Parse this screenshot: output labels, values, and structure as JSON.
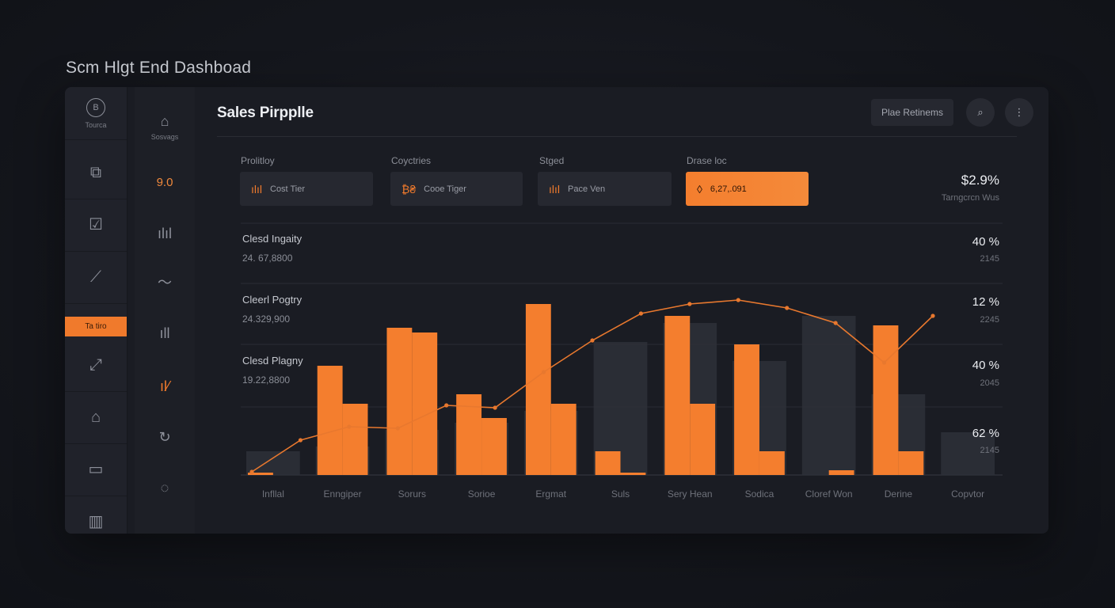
{
  "page_title": "Scm Hlgt End Dashboad",
  "rail": {
    "items": [
      {
        "icon": "B",
        "label": "Tourca",
        "name": "b-icon"
      },
      {
        "icon": "⧉",
        "label": "",
        "name": "clipboard-icon"
      },
      {
        "icon": "☑",
        "label": "",
        "name": "checklist-icon"
      },
      {
        "icon": "⟋",
        "label": "",
        "name": "link-icon"
      },
      {
        "icon": "⤢",
        "label": "",
        "name": "share-icon"
      },
      {
        "icon": "⌂",
        "label": "",
        "name": "home-icon"
      },
      {
        "icon": "▭",
        "label": "",
        "name": "wallet-icon"
      },
      {
        "icon": "▥",
        "label": "",
        "name": "calendar-icon"
      }
    ],
    "active_tab_label": "Ta  tiro"
  },
  "side2": {
    "items": [
      {
        "icon": "⌂",
        "label": "Sosvags",
        "name": "lock-icon"
      },
      {
        "icon": "",
        "label": "9.0",
        "name": "value-9"
      },
      {
        "icon": "ılıl",
        "label": "",
        "name": "bars-icon"
      },
      {
        "icon": "〜",
        "label": "",
        "name": "trend-icon"
      },
      {
        "icon": "ıll",
        "label": "",
        "name": "bar-chart-icon"
      },
      {
        "icon": "ıl⁄",
        "label": "",
        "name": "growth-icon"
      },
      {
        "icon": "↻",
        "label": "",
        "name": "refresh-icon"
      },
      {
        "icon": "◌",
        "label": "",
        "name": "loop-icon"
      }
    ]
  },
  "card": {
    "title": "Sales Pirpplle",
    "filter_button": "Plae Retinems",
    "search_icon": "⌕",
    "more_icon": "⋮"
  },
  "filters": [
    {
      "label": "Prolitloy",
      "value": "Cost Tier",
      "icon": "ılıl"
    },
    {
      "label": "Coyctries",
      "value": "Cooe Tiger",
      "icon": "₿₴"
    },
    {
      "label": "Stged",
      "value": "Pace Ven",
      "icon": "ılıl"
    },
    {
      "label": "Drase loc",
      "value": "6,27,.091",
      "icon": "◊"
    }
  ],
  "summary": {
    "value": "$2.9%",
    "label": "Tarngcrcn Wus"
  },
  "bands": [
    {
      "label": "Clesd Ingaity",
      "value": "24. 67,8800",
      "pct": "40 %",
      "sub": "2145"
    },
    {
      "label": "Cleerl Pogtry",
      "value": "24.329,900",
      "pct": "12 %",
      "sub": "2245"
    },
    {
      "label": "Clesd Plagny",
      "value": "19.22,8800",
      "pct": "40 %",
      "sub": "2045"
    },
    {
      "label": "",
      "value": "",
      "pct": "62 %",
      "sub": "2145"
    }
  ],
  "chart_data": {
    "type": "bar",
    "categories": [
      "Infllal",
      "Enngiper",
      "Sorurs",
      "Sorioe",
      "Ergmat",
      "Suls",
      "Sery Hean",
      "Sodica",
      "Cloref Won",
      "Derine",
      "Copvtor"
    ],
    "series": [
      {
        "values": [
          1,
          46,
          62,
          34,
          72,
          10,
          67,
          55,
          0,
          63,
          0
        ]
      },
      {
        "values": [
          0,
          30,
          60,
          24,
          30,
          1,
          30,
          10,
          2,
          10,
          0
        ]
      }
    ],
    "line_points": [
      0,
      40,
      57,
      55,
      84,
      81,
      126,
      166,
      200,
      212,
      217,
      207
    ],
    "line_tail": [
      188,
      138,
      197
    ],
    "colors": {
      "accent": "#f47e2e",
      "line": "#e8782e",
      "ghost": "#2e3038"
    }
  }
}
